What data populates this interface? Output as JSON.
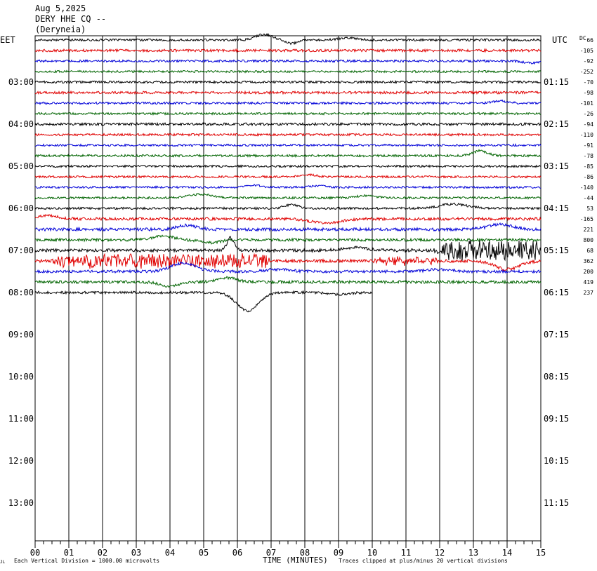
{
  "header": {
    "date": "Aug 5,2025",
    "channel": "DERY HHE CQ --",
    "station": "(Deryneia)"
  },
  "axes": {
    "left_label": "EET",
    "right_label": "UTC",
    "dc_label": "DC",
    "xlabel": "TIME (MINUTES)",
    "footer_left_mark": "JL",
    "footer_left": "Each Vertical Division = 1000.00 microvolts",
    "footer_right": "Traces clipped at plus/minus 20 vertical divisions"
  },
  "chart_data": {
    "type": "line",
    "title": "",
    "x_range": [
      0,
      15
    ],
    "x_ticks": [
      "00",
      "01",
      "02",
      "03",
      "04",
      "05",
      "06",
      "07",
      "08",
      "09",
      "10",
      "11",
      "12",
      "13",
      "14",
      "15"
    ],
    "hour_labels_left": [
      "03:00",
      "04:00",
      "05:00",
      "06:00",
      "07:00",
      "08:00",
      "09:00",
      "10:00",
      "11:00",
      "12:00",
      "13:00"
    ],
    "hour_labels_right": [
      "01:15",
      "02:15",
      "03:15",
      "04:15",
      "05:15",
      "06:15",
      "07:15",
      "08:15",
      "09:15",
      "10:15",
      "11:15"
    ],
    "hour_rows": [
      4,
      8,
      12,
      16,
      20,
      24,
      28,
      32,
      36,
      40,
      44
    ],
    "trace_colors": [
      "#000000",
      "#e00000",
      "#0000d8",
      "#006400"
    ],
    "dc_offsets": [
      "66",
      "-105",
      "-92",
      "-252",
      "-70",
      "-98",
      "-101",
      "-26",
      "-94",
      "-110",
      "-91",
      "-78",
      "-85",
      "-86",
      "-140",
      "-44",
      "53",
      "-165",
      "221",
      "800",
      "68",
      "362",
      "200",
      "419",
      "237"
    ],
    "traces": [
      {
        "row": 0,
        "end": 15,
        "amp": 1.6,
        "events": [
          {
            "t": 6.8,
            "a": -8,
            "w": 0.35
          },
          {
            "t": 7.6,
            "a": 5,
            "w": 0.25
          },
          {
            "t": 9.3,
            "a": -3,
            "w": 0.4
          }
        ]
      },
      {
        "row": 1,
        "end": 15,
        "amp": 1.8,
        "events": []
      },
      {
        "row": 2,
        "end": 15,
        "amp": 1.6,
        "events": [
          {
            "t": 14.7,
            "a": 3,
            "w": 0.3
          }
        ]
      },
      {
        "row": 3,
        "end": 15,
        "amp": 1.5,
        "events": []
      },
      {
        "row": 4,
        "end": 15,
        "amp": 1.6,
        "events": []
      },
      {
        "row": 5,
        "end": 15,
        "amp": 1.8,
        "events": []
      },
      {
        "row": 6,
        "end": 15,
        "amp": 1.6,
        "events": [
          {
            "t": 13.8,
            "a": -3,
            "w": 0.3
          }
        ]
      },
      {
        "row": 7,
        "end": 15,
        "amp": 1.5,
        "events": []
      },
      {
        "row": 8,
        "end": 15,
        "amp": 1.8,
        "events": []
      },
      {
        "row": 9,
        "end": 15,
        "amp": 1.6,
        "events": []
      },
      {
        "row": 10,
        "end": 15,
        "amp": 1.5,
        "events": []
      },
      {
        "row": 11,
        "end": 15,
        "amp": 1.6,
        "events": [
          {
            "t": 13.2,
            "a": -7,
            "w": 0.3
          }
        ]
      },
      {
        "row": 12,
        "end": 15,
        "amp": 1.5,
        "events": []
      },
      {
        "row": 13,
        "end": 15,
        "amp": 1.5,
        "events": [
          {
            "t": 8.1,
            "a": -3,
            "w": 0.3
          }
        ]
      },
      {
        "row": 14,
        "end": 15,
        "amp": 1.5,
        "events": [
          {
            "t": 6.5,
            "a": -3,
            "w": 0.3
          },
          {
            "t": 8.4,
            "a": -2,
            "w": 0.3
          }
        ]
      },
      {
        "row": 15,
        "end": 15,
        "amp": 1.5,
        "events": [
          {
            "t": 4.9,
            "a": -5,
            "w": 0.5
          },
          {
            "t": 9.8,
            "a": -3,
            "w": 0.4
          }
        ]
      },
      {
        "row": 16,
        "end": 15,
        "amp": 1.6,
        "events": [
          {
            "t": 7.6,
            "a": -5,
            "w": 0.3
          },
          {
            "t": 12.4,
            "a": -6,
            "w": 0.6
          }
        ]
      },
      {
        "row": 17,
        "end": 15,
        "amp": 2.0,
        "events": [
          {
            "t": 0.4,
            "a": -5,
            "w": 0.4
          },
          {
            "t": 8.6,
            "a": 6,
            "w": 0.6
          }
        ]
      },
      {
        "row": 18,
        "end": 15,
        "amp": 2.2,
        "events": [
          {
            "t": 4.5,
            "a": -6,
            "w": 0.4
          },
          {
            "t": 13.8,
            "a": -7,
            "w": 0.5
          }
        ]
      },
      {
        "row": 19,
        "end": 15,
        "amp": 2.0,
        "events": [
          {
            "t": 3.8,
            "a": -6,
            "w": 0.4
          },
          {
            "t": 5.2,
            "a": 4,
            "w": 0.4
          }
        ]
      },
      {
        "row": 20,
        "end": 15,
        "amp": 2.2,
        "events": [
          {
            "t": 5.8,
            "a": -18,
            "w": 0.15
          },
          {
            "t": 9.5,
            "a": -4,
            "w": 0.5
          }
        ],
        "bursts": [
          {
            "from": 11.8,
            "to": 15,
            "amp": 14
          }
        ]
      },
      {
        "row": 21,
        "end": 15,
        "amp": 2.2,
        "events": [
          {
            "t": 14.0,
            "a": 12,
            "w": 0.5
          }
        ],
        "bursts": [
          {
            "from": 0.5,
            "to": 7.0,
            "amp": 9
          },
          {
            "from": 10.0,
            "to": 12.0,
            "amp": 5
          }
        ]
      },
      {
        "row": 22,
        "end": 15,
        "amp": 2.0,
        "events": [
          {
            "t": 4.4,
            "a": -12,
            "w": 0.5
          },
          {
            "t": 7.2,
            "a": -3,
            "w": 0.5
          },
          {
            "t": 12.0,
            "a": -3,
            "w": 0.5
          }
        ]
      },
      {
        "row": 23,
        "end": 15,
        "amp": 2.0,
        "events": [
          {
            "t": 4.0,
            "a": 6,
            "w": 0.4
          },
          {
            "t": 5.7,
            "a": -6,
            "w": 0.4
          }
        ]
      },
      {
        "row": 24,
        "end": 10,
        "amp": 1.8,
        "events": [
          {
            "t": 6.3,
            "a": 26,
            "w": 0.45
          },
          {
            "t": 9.0,
            "a": 3,
            "w": 0.4
          }
        ]
      }
    ]
  }
}
